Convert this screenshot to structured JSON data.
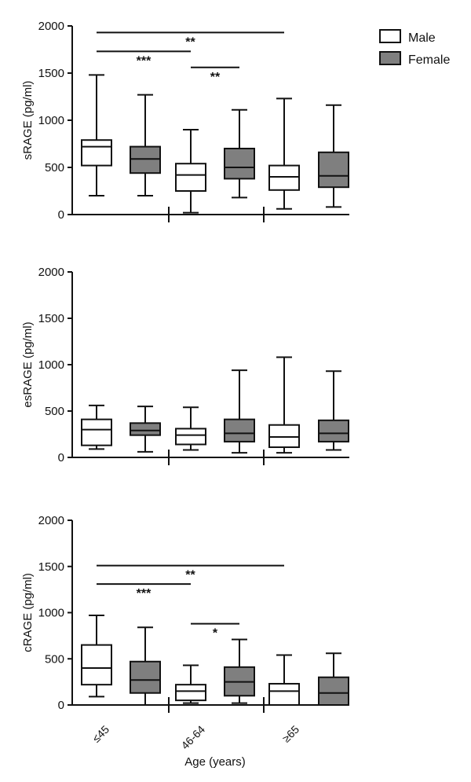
{
  "chart_data": [
    {
      "type": "box",
      "ylabel": "sRAGE (pg/ml)",
      "ylim": [
        0,
        2000
      ],
      "yticks": [
        0,
        500,
        1000,
        1500,
        2000
      ],
      "categories": [
        "≤45",
        "46-64",
        "≥65"
      ],
      "series": [
        {
          "name": "Male",
          "color": "#ffffff",
          "boxes": [
            {
              "category": "≤45",
              "min": 200,
              "q1": 520,
              "median": 720,
              "q3": 790,
              "max": 1480
            },
            {
              "category": "46-64",
              "min": 20,
              "q1": 250,
              "median": 420,
              "q3": 540,
              "max": 900
            },
            {
              "category": "≥65",
              "min": 60,
              "q1": 260,
              "median": 400,
              "q3": 520,
              "max": 1230
            }
          ]
        },
        {
          "name": "Female",
          "color": "#7f7f7f",
          "boxes": [
            {
              "category": "≤45",
              "min": 200,
              "q1": 440,
              "median": 590,
              "q3": 720,
              "max": 1270
            },
            {
              "category": "46-64",
              "min": 180,
              "q1": 380,
              "median": 500,
              "q3": 700,
              "max": 1110
            },
            {
              "category": "≥65",
              "min": 80,
              "q1": 290,
              "median": 410,
              "q3": 660,
              "max": 1160
            }
          ]
        }
      ],
      "significance": [
        {
          "label": "**",
          "from": 0,
          "to": 4,
          "y": 1930
        },
        {
          "label": "***",
          "from": 0,
          "to": 2,
          "y": 1730
        },
        {
          "label": "**",
          "from": 2,
          "to": 3,
          "y": 1560
        }
      ]
    },
    {
      "type": "box",
      "ylabel": "esRAGE (pg/ml)",
      "ylim": [
        0,
        2000
      ],
      "yticks": [
        0,
        500,
        1000,
        1500,
        2000
      ],
      "categories": [
        "≤45",
        "46-64",
        "≥65"
      ],
      "series": [
        {
          "name": "Male",
          "color": "#ffffff",
          "boxes": [
            {
              "category": "≤45",
              "min": 90,
              "q1": 130,
              "median": 300,
              "q3": 410,
              "max": 560
            },
            {
              "category": "46-64",
              "min": 80,
              "q1": 140,
              "median": 240,
              "q3": 310,
              "max": 540
            },
            {
              "category": "≥65",
              "min": 50,
              "q1": 110,
              "median": 220,
              "q3": 350,
              "max": 1080
            }
          ]
        },
        {
          "name": "Female",
          "color": "#7f7f7f",
          "boxes": [
            {
              "category": "≤45",
              "min": 60,
              "q1": 240,
              "median": 290,
              "q3": 370,
              "max": 550
            },
            {
              "category": "46-64",
              "min": 50,
              "q1": 170,
              "median": 260,
              "q3": 410,
              "max": 940
            },
            {
              "category": "≥65",
              "min": 80,
              "q1": 170,
              "median": 260,
              "q3": 400,
              "max": 930
            }
          ]
        }
      ],
      "significance": []
    },
    {
      "type": "box",
      "ylabel": "cRAGE (pg/ml)",
      "xlabel": "Age (years)",
      "ylim": [
        0,
        2000
      ],
      "yticks": [
        0,
        500,
        1000,
        1500,
        2000
      ],
      "categories": [
        "≤45",
        "46-64",
        "≥65"
      ],
      "series": [
        {
          "name": "Male",
          "color": "#ffffff",
          "boxes": [
            {
              "category": "≤45",
              "min": 90,
              "q1": 220,
              "median": 400,
              "q3": 650,
              "max": 970
            },
            {
              "category": "46-64",
              "min": 20,
              "q1": 50,
              "median": 150,
              "q3": 220,
              "max": 430
            },
            {
              "category": "≥65",
              "min": 0,
              "q1": 0,
              "median": 150,
              "q3": 230,
              "max": 540
            }
          ]
        },
        {
          "name": "Female",
          "color": "#7f7f7f",
          "boxes": [
            {
              "category": "≤45",
              "min": 0,
              "q1": 130,
              "median": 270,
              "q3": 470,
              "max": 840
            },
            {
              "category": "46-64",
              "min": 20,
              "q1": 100,
              "median": 250,
              "q3": 410,
              "max": 710
            },
            {
              "category": "≥65",
              "min": 0,
              "q1": 0,
              "median": 130,
              "q3": 300,
              "max": 560
            }
          ]
        }
      ],
      "significance": [
        {
          "label": "**",
          "from": 0,
          "to": 4,
          "y": 1510
        },
        {
          "label": "***",
          "from": 0,
          "to": 2,
          "y": 1310
        },
        {
          "label": "*",
          "from": 2,
          "to": 3,
          "y": 880
        }
      ]
    }
  ],
  "legend": {
    "placement": "top-right",
    "items": [
      {
        "label": "Male",
        "color": "#ffffff"
      },
      {
        "label": "Female",
        "color": "#7f7f7f"
      }
    ]
  }
}
